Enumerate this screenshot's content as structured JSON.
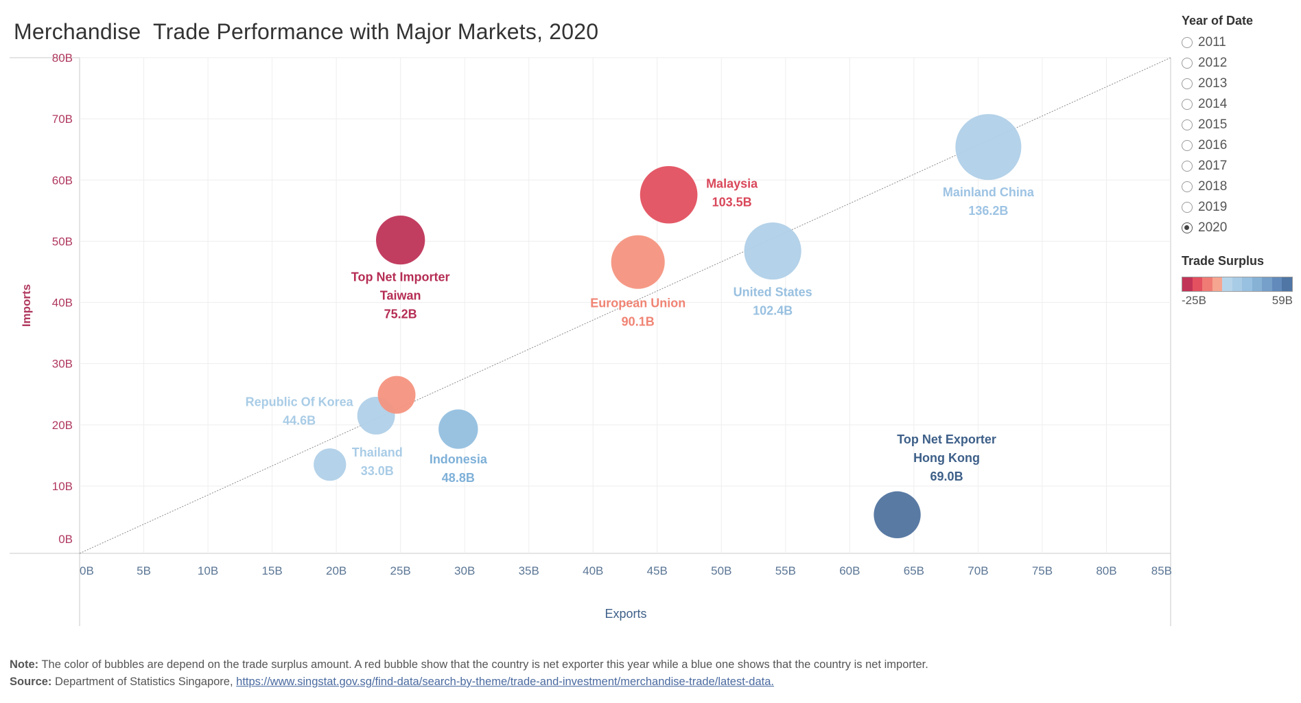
{
  "title": "Merchandise  Trade Performance with Major Markets, 2020",
  "year_filter": {
    "title": "Year of Date",
    "years": [
      "2011",
      "2012",
      "2013",
      "2014",
      "2015",
      "2016",
      "2017",
      "2018",
      "2019",
      "2020"
    ],
    "selected": "2020"
  },
  "surplus_legend": {
    "title": "Trade Surplus",
    "min_label": "-25B",
    "max_label": "59B",
    "colors": [
      "#c23457",
      "#e3505f",
      "#ef7b74",
      "#f6a590",
      "#b7d5ea",
      "#a9cce6",
      "#98c0e0",
      "#87b2d6",
      "#769fc9",
      "#628abb",
      "#4f76a4"
    ]
  },
  "chart_data": {
    "type": "scatter",
    "title": "Merchandise  Trade Performance with Major Markets, 2020",
    "xlabel": "Exports",
    "ylabel": "Imports",
    "xlim": [
      0,
      85
    ],
    "ylim": [
      -1,
      80
    ],
    "x_ticks": [
      "0B",
      "5B",
      "10B",
      "15B",
      "20B",
      "25B",
      "30B",
      "35B",
      "40B",
      "45B",
      "50B",
      "55B",
      "60B",
      "65B",
      "70B",
      "75B",
      "80B",
      "85B"
    ],
    "y_ticks": [
      "0B",
      "10B",
      "20B",
      "30B",
      "40B",
      "50B",
      "60B",
      "70B",
      "80B"
    ],
    "reference_line": "diagonal exports = imports",
    "points": [
      {
        "label_prefix": "",
        "name": "Mainland China",
        "x": 70.8,
        "y": 65.4,
        "total": "136.2B",
        "color": "#b0d0e8"
      },
      {
        "label_prefix": "",
        "name": "Malaysia",
        "x": 45.9,
        "y": 57.6,
        "total": "103.5B",
        "color": "#e3505f"
      },
      {
        "label_prefix": "Top Net Importer",
        "name": "Taiwan",
        "x": 25.0,
        "y": 50.2,
        "total": "75.2B",
        "color": "#bf3459"
      },
      {
        "label_prefix": "",
        "name": "European Union",
        "x": 43.5,
        "y": 46.6,
        "total": "90.1B",
        "color": "#f4937f"
      },
      {
        "label_prefix": "",
        "name": "United States",
        "x": 54.0,
        "y": 48.4,
        "total": "102.4B",
        "color": "#b0d0e8"
      },
      {
        "label_prefix": "",
        "name": "Republic Of Korea",
        "x": 23.1,
        "y": 21.5,
        "total": "44.6B",
        "color": "#b0d0e8"
      },
      {
        "label_prefix": "",
        "name": "Thailand",
        "x": 19.5,
        "y": 13.5,
        "total": "33.0B",
        "color": "#b0d0e8"
      },
      {
        "label_prefix": "",
        "name": "Indonesia",
        "x": 29.5,
        "y": 19.3,
        "total": "48.8B",
        "color": "#94bfdf"
      },
      {
        "label_prefix": "",
        "name": "Unlabeled",
        "x": 24.7,
        "y": 24.9,
        "total": "",
        "color": "#f4937f"
      },
      {
        "label_prefix": "Top Net Exporter",
        "name": "Hong Kong",
        "x": 63.7,
        "y": 5.3,
        "total": "69.0B",
        "color": "#50739e"
      }
    ]
  },
  "note": {
    "note_label": "Note:",
    "note_text": " The color of bubbles are depend on the trade surplus amount. A red bubble show that the country is net exporter this year while a blue one shows that the country is net importer.",
    "source_label": "Source:",
    "source_text": " Department of Statistics Singapore, ",
    "source_link": "https://www.singstat.gov.sg/find-data/search-by-theme/trade-and-investment/merchandise-trade/latest-data."
  }
}
